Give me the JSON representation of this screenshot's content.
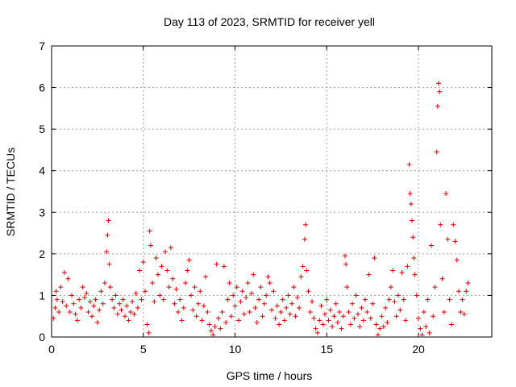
{
  "chart_data": {
    "type": "scatter",
    "title": "Day 113 of 2023, SRMTID for receiver yell",
    "xlabel": "GPS time / hours",
    "ylabel": "SRMTID / TECUs",
    "xlim": [
      0,
      24
    ],
    "ylim": [
      0,
      7
    ],
    "xticks": [
      0,
      5,
      10,
      15,
      20
    ],
    "yticks": [
      0,
      1,
      2,
      3,
      4,
      5,
      6,
      7
    ],
    "grid": true,
    "marker": "+",
    "color": "#dd0000",
    "series": [
      {
        "name": "SRMTID",
        "points": [
          [
            0.1,
            0.45
          ],
          [
            0.2,
            0.7
          ],
          [
            0.25,
            1.1
          ],
          [
            0.3,
            0.9
          ],
          [
            0.4,
            0.6
          ],
          [
            0.5,
            1.2
          ],
          [
            0.6,
            0.85
          ],
          [
            0.7,
            1.55
          ],
          [
            0.8,
            0.75
          ],
          [
            0.9,
            1.4
          ],
          [
            1.0,
            0.6
          ],
          [
            1.1,
            1.0
          ],
          [
            1.2,
            0.8
          ],
          [
            1.3,
            0.55
          ],
          [
            1.4,
            0.4
          ],
          [
            1.5,
            0.9
          ],
          [
            1.6,
            0.7
          ],
          [
            1.7,
            1.2
          ],
          [
            1.8,
            0.95
          ],
          [
            1.9,
            1.05
          ],
          [
            2.0,
            0.6
          ],
          [
            2.1,
            0.85
          ],
          [
            2.2,
            0.5
          ],
          [
            2.3,
            0.75
          ],
          [
            2.4,
            0.9
          ],
          [
            2.5,
            0.35
          ],
          [
            2.6,
            0.65
          ],
          [
            2.7,
            1.1
          ],
          [
            2.8,
            0.8
          ],
          [
            2.9,
            1.3
          ],
          [
            3.0,
            2.05
          ],
          [
            3.05,
            2.45
          ],
          [
            3.1,
            2.8
          ],
          [
            3.15,
            1.75
          ],
          [
            3.2,
            1.2
          ],
          [
            3.3,
            0.9
          ],
          [
            3.4,
            0.7
          ],
          [
            3.5,
            1.0
          ],
          [
            3.6,
            0.55
          ],
          [
            3.7,
            0.8
          ],
          [
            3.8,
            0.65
          ],
          [
            3.9,
            0.9
          ],
          [
            4.0,
            0.5
          ],
          [
            4.1,
            0.75
          ],
          [
            4.2,
            0.4
          ],
          [
            4.3,
            0.6
          ],
          [
            4.4,
            0.85
          ],
          [
            4.5,
            0.55
          ],
          [
            4.6,
            1.05
          ],
          [
            4.7,
            0.7
          ],
          [
            4.8,
            1.6
          ],
          [
            4.9,
            0.9
          ],
          [
            5.0,
            1.8
          ],
          [
            5.1,
            1.1
          ],
          [
            5.2,
            0.3
          ],
          [
            5.3,
            0.1
          ],
          [
            5.35,
            2.55
          ],
          [
            5.4,
            2.2
          ],
          [
            5.5,
            1.3
          ],
          [
            5.6,
            0.85
          ],
          [
            5.7,
            1.9
          ],
          [
            5.8,
            1.5
          ],
          [
            5.9,
            1.0
          ],
          [
            6.0,
            1.7
          ],
          [
            6.1,
            0.9
          ],
          [
            6.2,
            2.05
          ],
          [
            6.3,
            1.6
          ],
          [
            6.4,
            1.2
          ],
          [
            6.5,
            2.15
          ],
          [
            6.6,
            1.4
          ],
          [
            6.7,
            0.8
          ],
          [
            6.8,
            1.15
          ],
          [
            6.9,
            0.6
          ],
          [
            7.0,
            0.9
          ],
          [
            7.1,
            0.4
          ],
          [
            7.2,
            0.7
          ],
          [
            7.3,
            1.3
          ],
          [
            7.4,
            1.6
          ],
          [
            7.5,
            1.85
          ],
          [
            7.6,
            1.0
          ],
          [
            7.7,
            0.65
          ],
          [
            7.8,
            1.2
          ],
          [
            7.9,
            0.5
          ],
          [
            8.0,
            0.8
          ],
          [
            8.1,
            1.1
          ],
          [
            8.2,
            0.4
          ],
          [
            8.3,
            0.75
          ],
          [
            8.4,
            1.45
          ],
          [
            8.5,
            0.6
          ],
          [
            8.6,
            0.3
          ],
          [
            8.7,
            0.15
          ],
          [
            8.8,
            0.05
          ],
          [
            8.9,
            0.25
          ],
          [
            9.0,
            1.75
          ],
          [
            9.1,
            0.45
          ],
          [
            9.2,
            0.2
          ],
          [
            9.3,
            0.6
          ],
          [
            9.4,
            1.7
          ],
          [
            9.5,
            0.35
          ],
          [
            9.6,
            0.9
          ],
          [
            9.7,
            1.3
          ],
          [
            9.8,
            0.5
          ],
          [
            9.9,
            1.0
          ],
          [
            10.0,
            0.75
          ],
          [
            10.1,
            1.2
          ],
          [
            10.2,
            0.4
          ],
          [
            10.3,
            0.85
          ],
          [
            10.4,
            1.1
          ],
          [
            10.5,
            0.55
          ],
          [
            10.6,
            0.95
          ],
          [
            10.7,
            1.3
          ],
          [
            10.8,
            0.6
          ],
          [
            10.9,
            1.05
          ],
          [
            11.0,
            1.5
          ],
          [
            11.1,
            0.7
          ],
          [
            11.2,
            0.35
          ],
          [
            11.3,
            0.9
          ],
          [
            11.4,
            1.2
          ],
          [
            11.5,
            0.5
          ],
          [
            11.6,
            0.8
          ],
          [
            11.7,
            1.0
          ],
          [
            11.8,
            1.45
          ],
          [
            11.9,
            1.3
          ],
          [
            12.0,
            0.65
          ],
          [
            12.1,
            1.1
          ],
          [
            12.2,
            0.45
          ],
          [
            12.3,
            0.75
          ],
          [
            12.4,
            0.3
          ],
          [
            12.5,
            0.6
          ],
          [
            12.6,
            0.9
          ],
          [
            12.7,
            0.4
          ],
          [
            12.8,
            0.7
          ],
          [
            12.9,
            1.0
          ],
          [
            13.0,
            0.55
          ],
          [
            13.1,
            0.8
          ],
          [
            13.2,
            1.2
          ],
          [
            13.3,
            0.5
          ],
          [
            13.4,
            0.95
          ],
          [
            13.5,
            0.7
          ],
          [
            13.6,
            1.45
          ],
          [
            13.7,
            1.7
          ],
          [
            13.8,
            2.35
          ],
          [
            13.85,
            2.7
          ],
          [
            13.9,
            1.6
          ],
          [
            14.0,
            1.1
          ],
          [
            14.1,
            0.6
          ],
          [
            14.2,
            0.85
          ],
          [
            14.3,
            0.45
          ],
          [
            14.4,
            0.2
          ],
          [
            14.5,
            0.1
          ],
          [
            14.6,
            0.4
          ],
          [
            14.7,
            0.75
          ],
          [
            14.8,
            0.3
          ],
          [
            14.9,
            0.55
          ],
          [
            15.0,
            0.9
          ],
          [
            15.1,
            0.4
          ],
          [
            15.2,
            0.65
          ],
          [
            15.3,
            0.25
          ],
          [
            15.4,
            0.5
          ],
          [
            15.5,
            0.8
          ],
          [
            15.6,
            0.35
          ],
          [
            15.7,
            0.6
          ],
          [
            15.8,
            0.2
          ],
          [
            15.9,
            0.5
          ],
          [
            16.0,
            1.95
          ],
          [
            16.05,
            1.75
          ],
          [
            16.1,
            1.2
          ],
          [
            16.2,
            0.6
          ],
          [
            16.3,
            0.3
          ],
          [
            16.4,
            0.8
          ],
          [
            16.5,
            0.45
          ],
          [
            16.6,
            1.0
          ],
          [
            16.7,
            0.55
          ],
          [
            16.8,
            0.25
          ],
          [
            16.9,
            0.7
          ],
          [
            17.0,
            0.4
          ],
          [
            17.1,
            0.9
          ],
          [
            17.2,
            0.6
          ],
          [
            17.3,
            1.5
          ],
          [
            17.4,
            0.45
          ],
          [
            17.5,
            0.8
          ],
          [
            17.6,
            1.9
          ],
          [
            17.7,
            0.3
          ],
          [
            17.8,
            0.05
          ],
          [
            17.9,
            0.2
          ],
          [
            18.0,
            0.5
          ],
          [
            18.1,
            0.25
          ],
          [
            18.2,
            0.7
          ],
          [
            18.3,
            0.35
          ],
          [
            18.4,
            0.9
          ],
          [
            18.5,
            1.2
          ],
          [
            18.6,
            1.6
          ],
          [
            18.7,
            0.85
          ],
          [
            18.8,
            0.5
          ],
          [
            18.9,
            1.0
          ],
          [
            19.0,
            0.65
          ],
          [
            19.1,
            1.55
          ],
          [
            19.2,
            0.9
          ],
          [
            19.3,
            0.4
          ],
          [
            19.4,
            1.7
          ],
          [
            19.5,
            4.15
          ],
          [
            19.55,
            3.45
          ],
          [
            19.6,
            3.2
          ],
          [
            19.65,
            2.8
          ],
          [
            19.7,
            2.4
          ],
          [
            19.75,
            1.9
          ],
          [
            19.8,
            1.5
          ],
          [
            19.9,
            1.0
          ],
          [
            20.0,
            0.45
          ],
          [
            20.1,
            0.2
          ],
          [
            20.2,
            0.05
          ],
          [
            20.3,
            0.6
          ],
          [
            20.4,
            0.25
          ],
          [
            20.5,
            0.9
          ],
          [
            20.6,
            0.1
          ],
          [
            20.7,
            2.2
          ],
          [
            20.8,
            0.5
          ],
          [
            20.9,
            1.2
          ],
          [
            21.0,
            4.45
          ],
          [
            21.05,
            5.55
          ],
          [
            21.1,
            6.1
          ],
          [
            21.15,
            5.9
          ],
          [
            21.2,
            2.7
          ],
          [
            21.3,
            1.4
          ],
          [
            21.4,
            0.6
          ],
          [
            21.5,
            3.45
          ],
          [
            21.6,
            2.35
          ],
          [
            21.7,
            0.9
          ],
          [
            21.8,
            0.3
          ],
          [
            21.9,
            2.7
          ],
          [
            22.0,
            2.3
          ],
          [
            22.1,
            1.85
          ],
          [
            22.2,
            1.1
          ],
          [
            22.3,
            0.6
          ],
          [
            22.4,
            0.9
          ],
          [
            22.5,
            0.55
          ],
          [
            22.6,
            1.1
          ],
          [
            22.7,
            1.3
          ]
        ]
      }
    ]
  }
}
